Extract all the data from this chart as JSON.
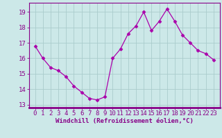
{
  "hours": [
    0,
    1,
    2,
    3,
    4,
    5,
    6,
    7,
    8,
    9,
    10,
    11,
    12,
    13,
    14,
    15,
    16,
    17,
    18,
    19,
    20,
    21,
    22,
    23
  ],
  "values": [
    16.8,
    16.0,
    15.4,
    15.2,
    14.8,
    14.2,
    13.8,
    13.4,
    13.3,
    13.5,
    16.0,
    16.6,
    17.6,
    18.1,
    19.0,
    17.8,
    18.4,
    19.2,
    18.4,
    17.5,
    17.0,
    16.5,
    16.3,
    15.9
  ],
  "line_color": "#aa00aa",
  "marker": "D",
  "bg_color": "#cce8e8",
  "grid_color": "#aacccc",
  "axis_color": "#880088",
  "xlabel": "Windchill (Refroidissement éolien,°C)",
  "xlabel_color": "#880088",
  "ylim": [
    12.8,
    19.6
  ],
  "yticks": [
    13,
    14,
    15,
    16,
    17,
    18,
    19
  ],
  "tick_color": "#880088",
  "font_color": "#880088",
  "tick_fontsize": 6.5,
  "xlabel_fontsize": 6.5
}
